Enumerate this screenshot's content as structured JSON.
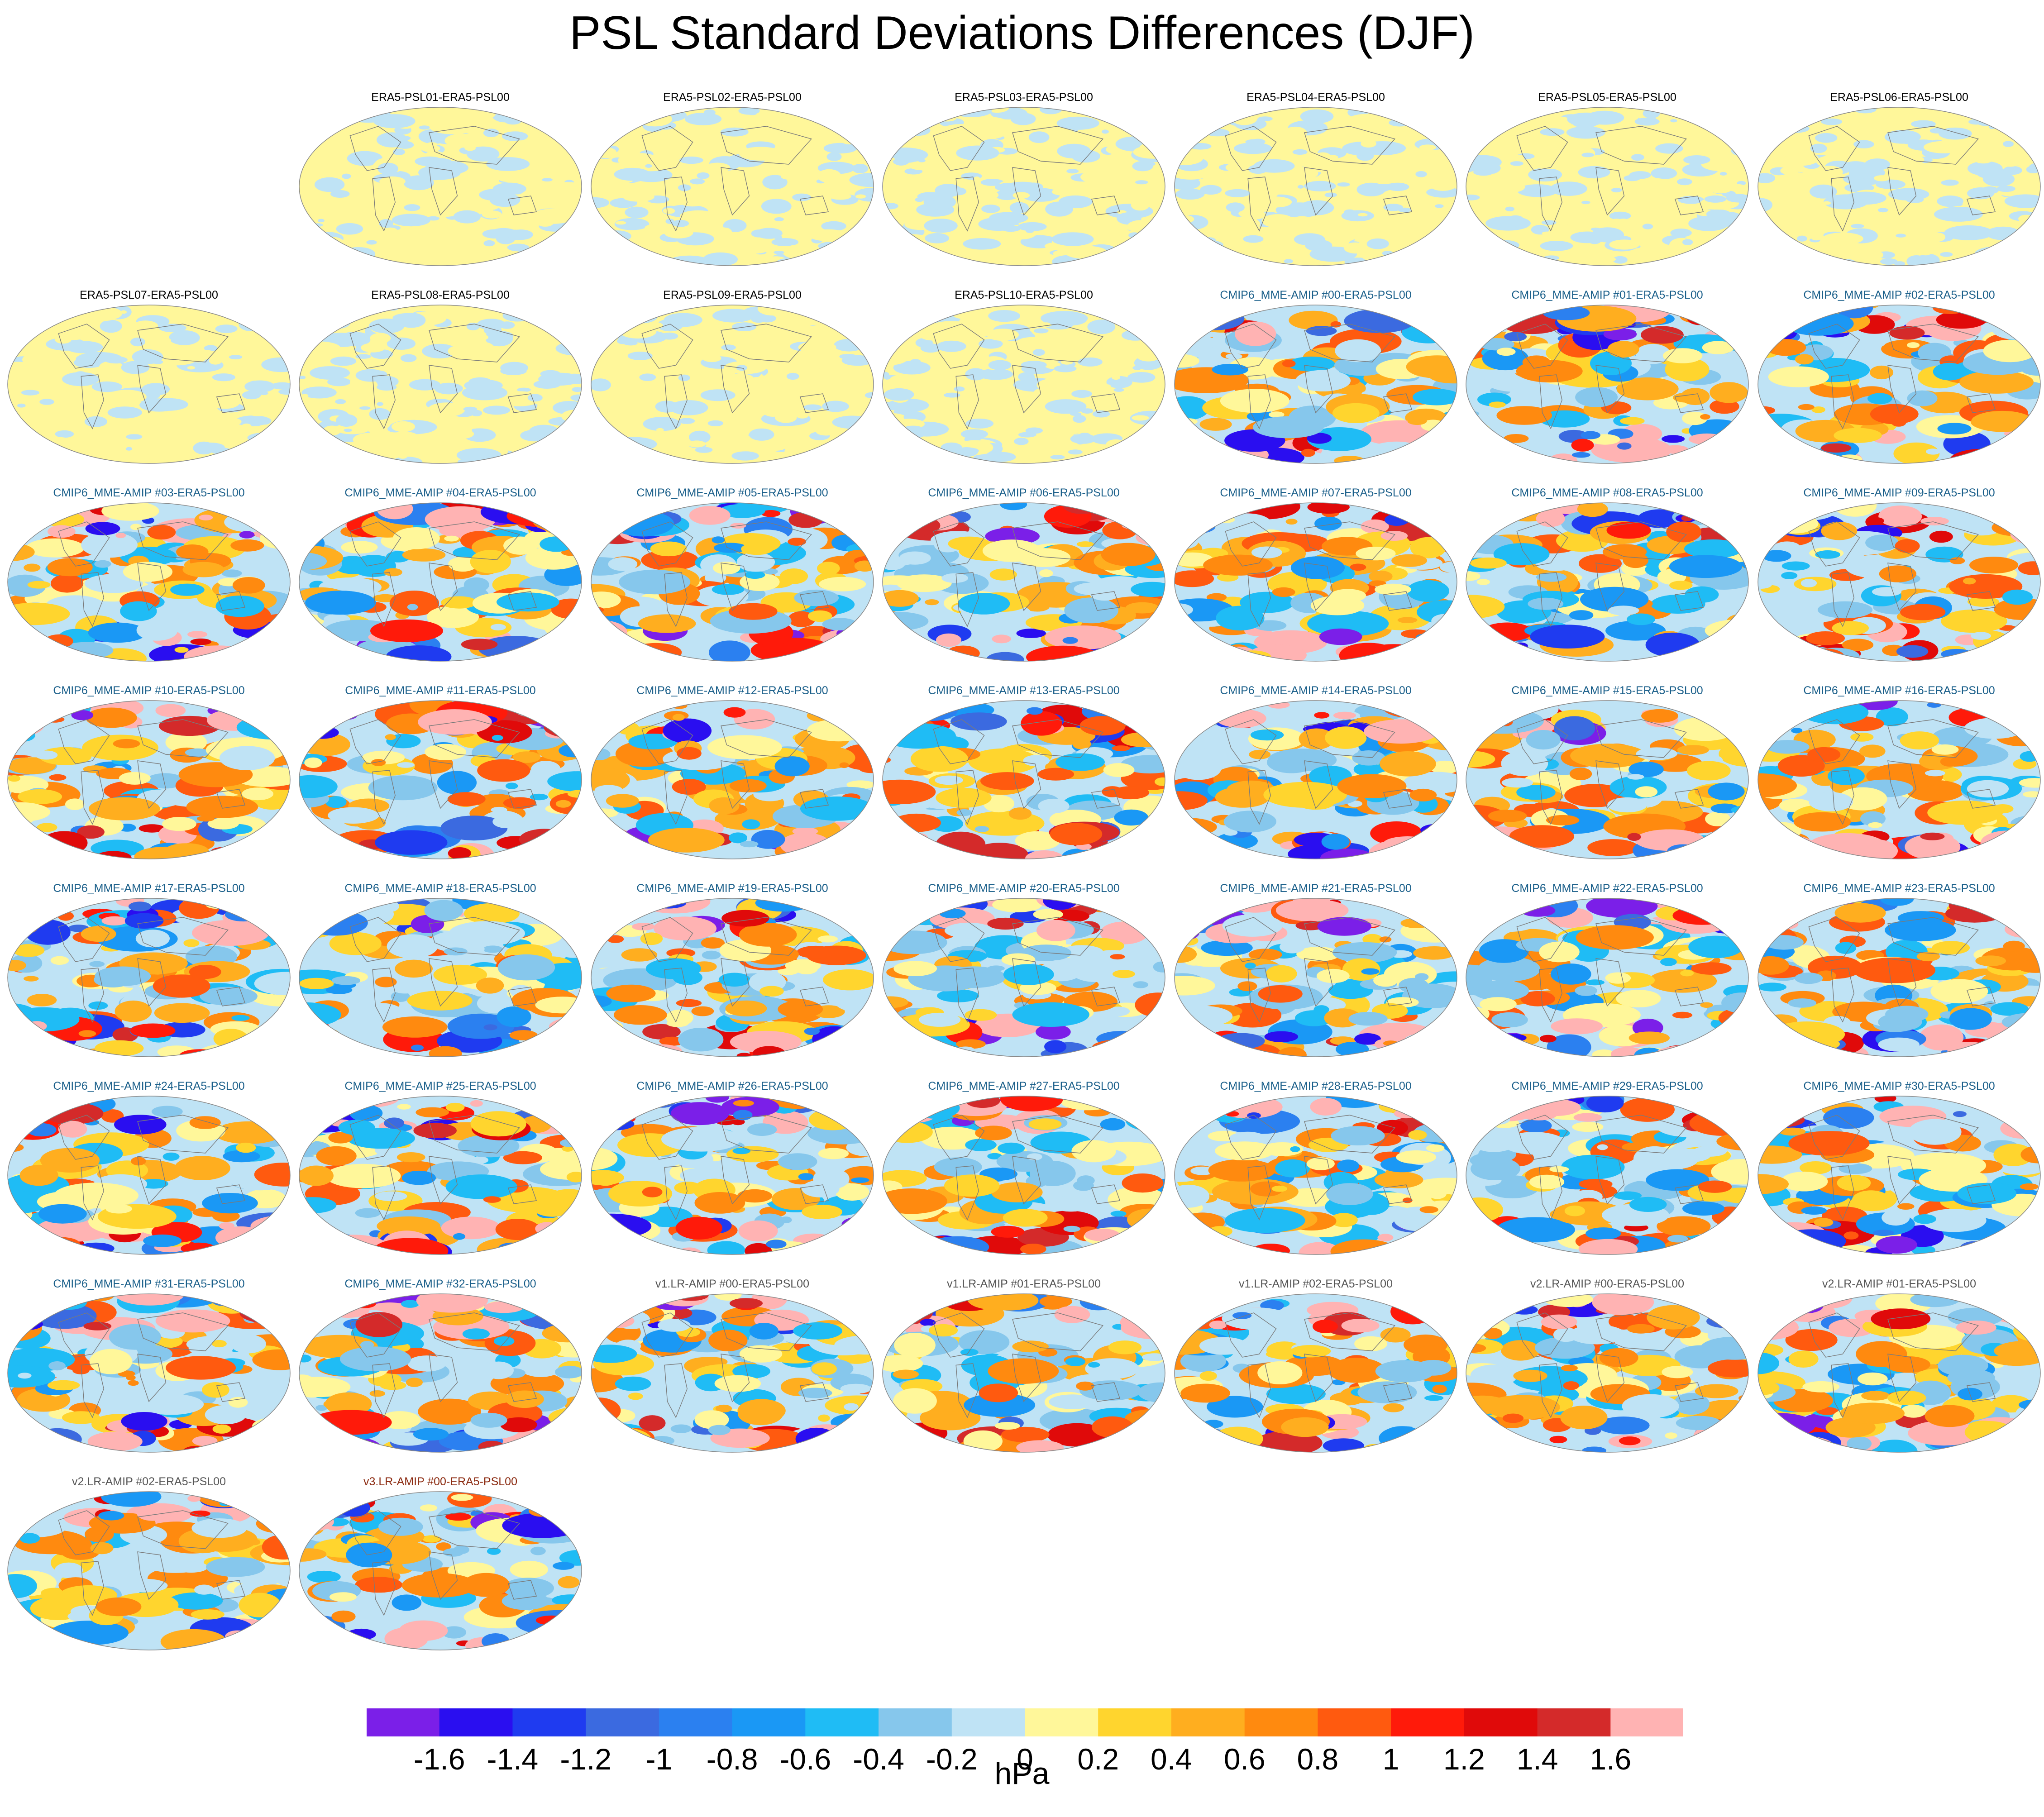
{
  "title": "PSL Standard Deviations Differences (DJF)",
  "panels": [
    {
      "label": "ERA5-PSL01-ERA5-PSL00",
      "group": "era5"
    },
    {
      "label": "ERA5-PSL02-ERA5-PSL00",
      "group": "era5"
    },
    {
      "label": "ERA5-PSL03-ERA5-PSL00",
      "group": "era5"
    },
    {
      "label": "ERA5-PSL04-ERA5-PSL00",
      "group": "era5"
    },
    {
      "label": "ERA5-PSL05-ERA5-PSL00",
      "group": "era5"
    },
    {
      "label": "ERA5-PSL06-ERA5-PSL00",
      "group": "era5"
    },
    {
      "label": "ERA5-PSL07-ERA5-PSL00",
      "group": "era5"
    },
    {
      "label": "ERA5-PSL08-ERA5-PSL00",
      "group": "era5"
    },
    {
      "label": "ERA5-PSL09-ERA5-PSL00",
      "group": "era5"
    },
    {
      "label": "ERA5-PSL10-ERA5-PSL00",
      "group": "era5"
    },
    {
      "label": "CMIP6_MME-AMIP  #00-ERA5-PSL00",
      "group": "cmip6"
    },
    {
      "label": "CMIP6_MME-AMIP  #01-ERA5-PSL00",
      "group": "cmip6"
    },
    {
      "label": "CMIP6_MME-AMIP  #02-ERA5-PSL00",
      "group": "cmip6"
    },
    {
      "label": "CMIP6_MME-AMIP  #03-ERA5-PSL00",
      "group": "cmip6"
    },
    {
      "label": "CMIP6_MME-AMIP  #04-ERA5-PSL00",
      "group": "cmip6"
    },
    {
      "label": "CMIP6_MME-AMIP  #05-ERA5-PSL00",
      "group": "cmip6"
    },
    {
      "label": "CMIP6_MME-AMIP  #06-ERA5-PSL00",
      "group": "cmip6"
    },
    {
      "label": "CMIP6_MME-AMIP  #07-ERA5-PSL00",
      "group": "cmip6"
    },
    {
      "label": "CMIP6_MME-AMIP  #08-ERA5-PSL00",
      "group": "cmip6"
    },
    {
      "label": "CMIP6_MME-AMIP  #09-ERA5-PSL00",
      "group": "cmip6"
    },
    {
      "label": "CMIP6_MME-AMIP  #10-ERA5-PSL00",
      "group": "cmip6"
    },
    {
      "label": "CMIP6_MME-AMIP  #11-ERA5-PSL00",
      "group": "cmip6"
    },
    {
      "label": "CMIP6_MME-AMIP  #12-ERA5-PSL00",
      "group": "cmip6"
    },
    {
      "label": "CMIP6_MME-AMIP  #13-ERA5-PSL00",
      "group": "cmip6"
    },
    {
      "label": "CMIP6_MME-AMIP  #14-ERA5-PSL00",
      "group": "cmip6"
    },
    {
      "label": "CMIP6_MME-AMIP  #15-ERA5-PSL00",
      "group": "cmip6"
    },
    {
      "label": "CMIP6_MME-AMIP  #16-ERA5-PSL00",
      "group": "cmip6"
    },
    {
      "label": "CMIP6_MME-AMIP  #17-ERA5-PSL00",
      "group": "cmip6"
    },
    {
      "label": "CMIP6_MME-AMIP  #18-ERA5-PSL00",
      "group": "cmip6"
    },
    {
      "label": "CMIP6_MME-AMIP  #19-ERA5-PSL00",
      "group": "cmip6"
    },
    {
      "label": "CMIP6_MME-AMIP  #20-ERA5-PSL00",
      "group": "cmip6"
    },
    {
      "label": "CMIP6_MME-AMIP  #21-ERA5-PSL00",
      "group": "cmip6"
    },
    {
      "label": "CMIP6_MME-AMIP  #22-ERA5-PSL00",
      "group": "cmip6"
    },
    {
      "label": "CMIP6_MME-AMIP  #23-ERA5-PSL00",
      "group": "cmip6"
    },
    {
      "label": "CMIP6_MME-AMIP  #24-ERA5-PSL00",
      "group": "cmip6"
    },
    {
      "label": "CMIP6_MME-AMIP  #25-ERA5-PSL00",
      "group": "cmip6"
    },
    {
      "label": "CMIP6_MME-AMIP  #26-ERA5-PSL00",
      "group": "cmip6"
    },
    {
      "label": "CMIP6_MME-AMIP  #27-ERA5-PSL00",
      "group": "cmip6"
    },
    {
      "label": "CMIP6_MME-AMIP  #28-ERA5-PSL00",
      "group": "cmip6"
    },
    {
      "label": "CMIP6_MME-AMIP  #29-ERA5-PSL00",
      "group": "cmip6"
    },
    {
      "label": "CMIP6_MME-AMIP  #30-ERA5-PSL00",
      "group": "cmip6"
    },
    {
      "label": "CMIP6_MME-AMIP  #31-ERA5-PSL00",
      "group": "cmip6"
    },
    {
      "label": "CMIP6_MME-AMIP  #32-ERA5-PSL00",
      "group": "cmip6"
    },
    {
      "label": "v1.LR-AMIP  #00-ERA5-PSL00",
      "group": "v1"
    },
    {
      "label": "v1.LR-AMIP  #01-ERA5-PSL00",
      "group": "v1"
    },
    {
      "label": "v1.LR-AMIP  #02-ERA5-PSL00",
      "group": "v1"
    },
    {
      "label": "v2.LR-AMIP  #00-ERA5-PSL00",
      "group": "v2"
    },
    {
      "label": "v2.LR-AMIP  #01-ERA5-PSL00",
      "group": "v2"
    },
    {
      "label": "v2.LR-AMIP  #02-ERA5-PSL00",
      "group": "v2"
    },
    {
      "label": "v3.LR-AMIP  #00-ERA5-PSL00",
      "group": "v3"
    }
  ],
  "chart_data": {
    "type": "heatmap",
    "title": "PSL Standard Deviations Differences (DJF)",
    "units": "hPa",
    "colorbar": {
      "levels": [
        -1.6,
        -1.4,
        -1.2,
        -1,
        -0.8,
        -0.6,
        -0.4,
        -0.2,
        0,
        0.2,
        0.4,
        0.6,
        0.8,
        1,
        1.2,
        1.4,
        1.6
      ],
      "tick_labels": [
        "-1.6",
        "-1.4",
        "-1.2",
        "-1",
        "-0.8",
        "-0.6",
        "-0.4",
        "-0.2",
        "0",
        "0.2",
        "0.4",
        "0.6",
        "0.8",
        "1",
        "1.2",
        "1.4",
        "1.6"
      ],
      "colors": [
        "#7b1fe8",
        "#2a0ef0",
        "#1f3bf0",
        "#3b6ae0",
        "#2b80f0",
        "#1a98f5",
        "#1fbcf5",
        "#86c7ec",
        "#bfe3f5",
        "#fff79a",
        "#ffd52e",
        "#ffae1f",
        "#ff8a0f",
        "#ff5a0f",
        "#ff1a0a",
        "#e00a0a",
        "#d42a2a",
        "#ffb3b3"
      ]
    }
  },
  "style": {
    "title_colors": {
      "era5": "#000000",
      "cmip6": "#1a5f8a",
      "v1": "#555555",
      "v2": "#555555",
      "v3": "#8b2a10"
    }
  }
}
